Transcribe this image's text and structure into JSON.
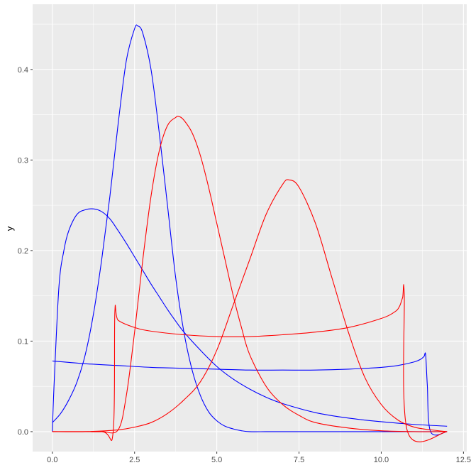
{
  "chart_data": {
    "type": "line",
    "title": "",
    "xlabel": "",
    "ylabel": "y",
    "xlim": [
      -0.6,
      12.6
    ],
    "ylim": [
      -0.022,
      0.472
    ],
    "x_ticks": [
      0.0,
      2.5,
      5.0,
      7.5,
      10.0,
      12.5
    ],
    "x_tick_labels": [
      "0.0",
      "2.5",
      "5.0",
      "7.5",
      "10.0",
      "12.5"
    ],
    "y_ticks": [
      0.0,
      0.1,
      0.2,
      0.3,
      0.4
    ],
    "y_tick_labels": [
      "0.0",
      "0.1",
      "0.2",
      "0.3",
      "0.4"
    ],
    "grid": true,
    "legend": "none",
    "colors": {
      "blue": "#0000ff",
      "red": "#ff0000",
      "panel": "#ebebeb",
      "grid": "#ffffff"
    },
    "series": [
      {
        "color": "#0000ff",
        "x": [
          0,
          0.05,
          0.2,
          0.35,
          0.5,
          0.75,
          1.0,
          1.25,
          1.5,
          1.75,
          2.0,
          2.25,
          2.5,
          2.75,
          3.0,
          3.25,
          3.5,
          3.75,
          4.0,
          4.5,
          5.0,
          5.5,
          6.0,
          6.5,
          7.0,
          8.0,
          9.0,
          10.0,
          11.0,
          12.0
        ],
        "y": [
          0.0,
          0.05,
          0.16,
          0.2,
          0.222,
          0.24,
          0.245,
          0.246,
          0.243,
          0.235,
          0.222,
          0.208,
          0.193,
          0.178,
          0.163,
          0.149,
          0.135,
          0.122,
          0.11,
          0.09,
          0.072,
          0.058,
          0.047,
          0.038,
          0.031,
          0.021,
          0.015,
          0.011,
          0.008,
          0.006
        ]
      },
      {
        "color": "#0000ff",
        "x": [
          0,
          0.25,
          0.5,
          0.75,
          1.0,
          1.25,
          1.5,
          1.75,
          2.0,
          2.25,
          2.5,
          2.6,
          2.75,
          3.0,
          3.25,
          3.5,
          3.75,
          4.0,
          4.25,
          4.5,
          4.75,
          5.0,
          5.25,
          5.5,
          5.75,
          6.0,
          6.5,
          7.0,
          8.0,
          10.0,
          12.0
        ],
        "y": [
          0.01,
          0.02,
          0.035,
          0.055,
          0.085,
          0.13,
          0.19,
          0.26,
          0.34,
          0.41,
          0.445,
          0.448,
          0.44,
          0.4,
          0.33,
          0.25,
          0.17,
          0.11,
          0.068,
          0.04,
          0.022,
          0.012,
          0.006,
          0.003,
          0.001,
          0.0,
          0.0,
          0.0,
          0.0,
          0.0,
          0.0
        ]
      },
      {
        "color": "#0000ff",
        "x": [
          0,
          1,
          2,
          3,
          4,
          5,
          6,
          7,
          8,
          9,
          10,
          10.5,
          11.0,
          11.2,
          11.3,
          11.35,
          11.4,
          11.5,
          12.0
        ],
        "y": [
          0.078,
          0.075,
          0.073,
          0.071,
          0.07,
          0.069,
          0.068,
          0.068,
          0.068,
          0.069,
          0.071,
          0.073,
          0.077,
          0.08,
          0.083,
          0.085,
          0.052,
          0.0,
          0.0
        ]
      },
      {
        "color": "#ff0000",
        "x": [
          0,
          1,
          1.5,
          2.0,
          2.25,
          2.5,
          2.75,
          3.0,
          3.25,
          3.5,
          3.75,
          3.85,
          4.0,
          4.25,
          4.5,
          4.75,
          5.0,
          5.25,
          5.5,
          5.75,
          6.0,
          6.5,
          7.0,
          7.5,
          8.0,
          9.0,
          10.0,
          11.0,
          12.0
        ],
        "y": [
          0.0,
          0.0,
          0.0,
          0.002,
          0.04,
          0.11,
          0.19,
          0.26,
          0.31,
          0.338,
          0.347,
          0.348,
          0.344,
          0.33,
          0.305,
          0.27,
          0.23,
          0.19,
          0.15,
          0.115,
          0.085,
          0.05,
          0.03,
          0.018,
          0.01,
          0.004,
          0.001,
          0.0,
          0.0
        ]
      },
      {
        "color": "#ff0000",
        "x": [
          0,
          1.5,
          1.85,
          1.9,
          2.0,
          2.5,
          3,
          4,
          5,
          6,
          7,
          8,
          9,
          10,
          10.4,
          10.55,
          10.65,
          10.7,
          10.8,
          12.0
        ],
        "y": [
          0.0,
          0.0,
          0.0,
          0.132,
          0.123,
          0.115,
          0.111,
          0.107,
          0.105,
          0.105,
          0.107,
          0.11,
          0.115,
          0.125,
          0.132,
          0.138,
          0.148,
          0.152,
          0.0,
          0.0
        ]
      },
      {
        "color": "#ff0000",
        "x": [
          0,
          1,
          2,
          2.5,
          3,
          3.5,
          4,
          4.5,
          5,
          5.5,
          6,
          6.5,
          7,
          7.2,
          7.5,
          8,
          8.5,
          9,
          9.5,
          10,
          10.5,
          11,
          11.5,
          12
        ],
        "y": [
          0.0,
          0.0,
          0.002,
          0.005,
          0.01,
          0.02,
          0.035,
          0.055,
          0.09,
          0.14,
          0.19,
          0.24,
          0.273,
          0.278,
          0.27,
          0.23,
          0.17,
          0.11,
          0.06,
          0.03,
          0.013,
          0.005,
          0.002,
          0.0
        ]
      }
    ]
  }
}
